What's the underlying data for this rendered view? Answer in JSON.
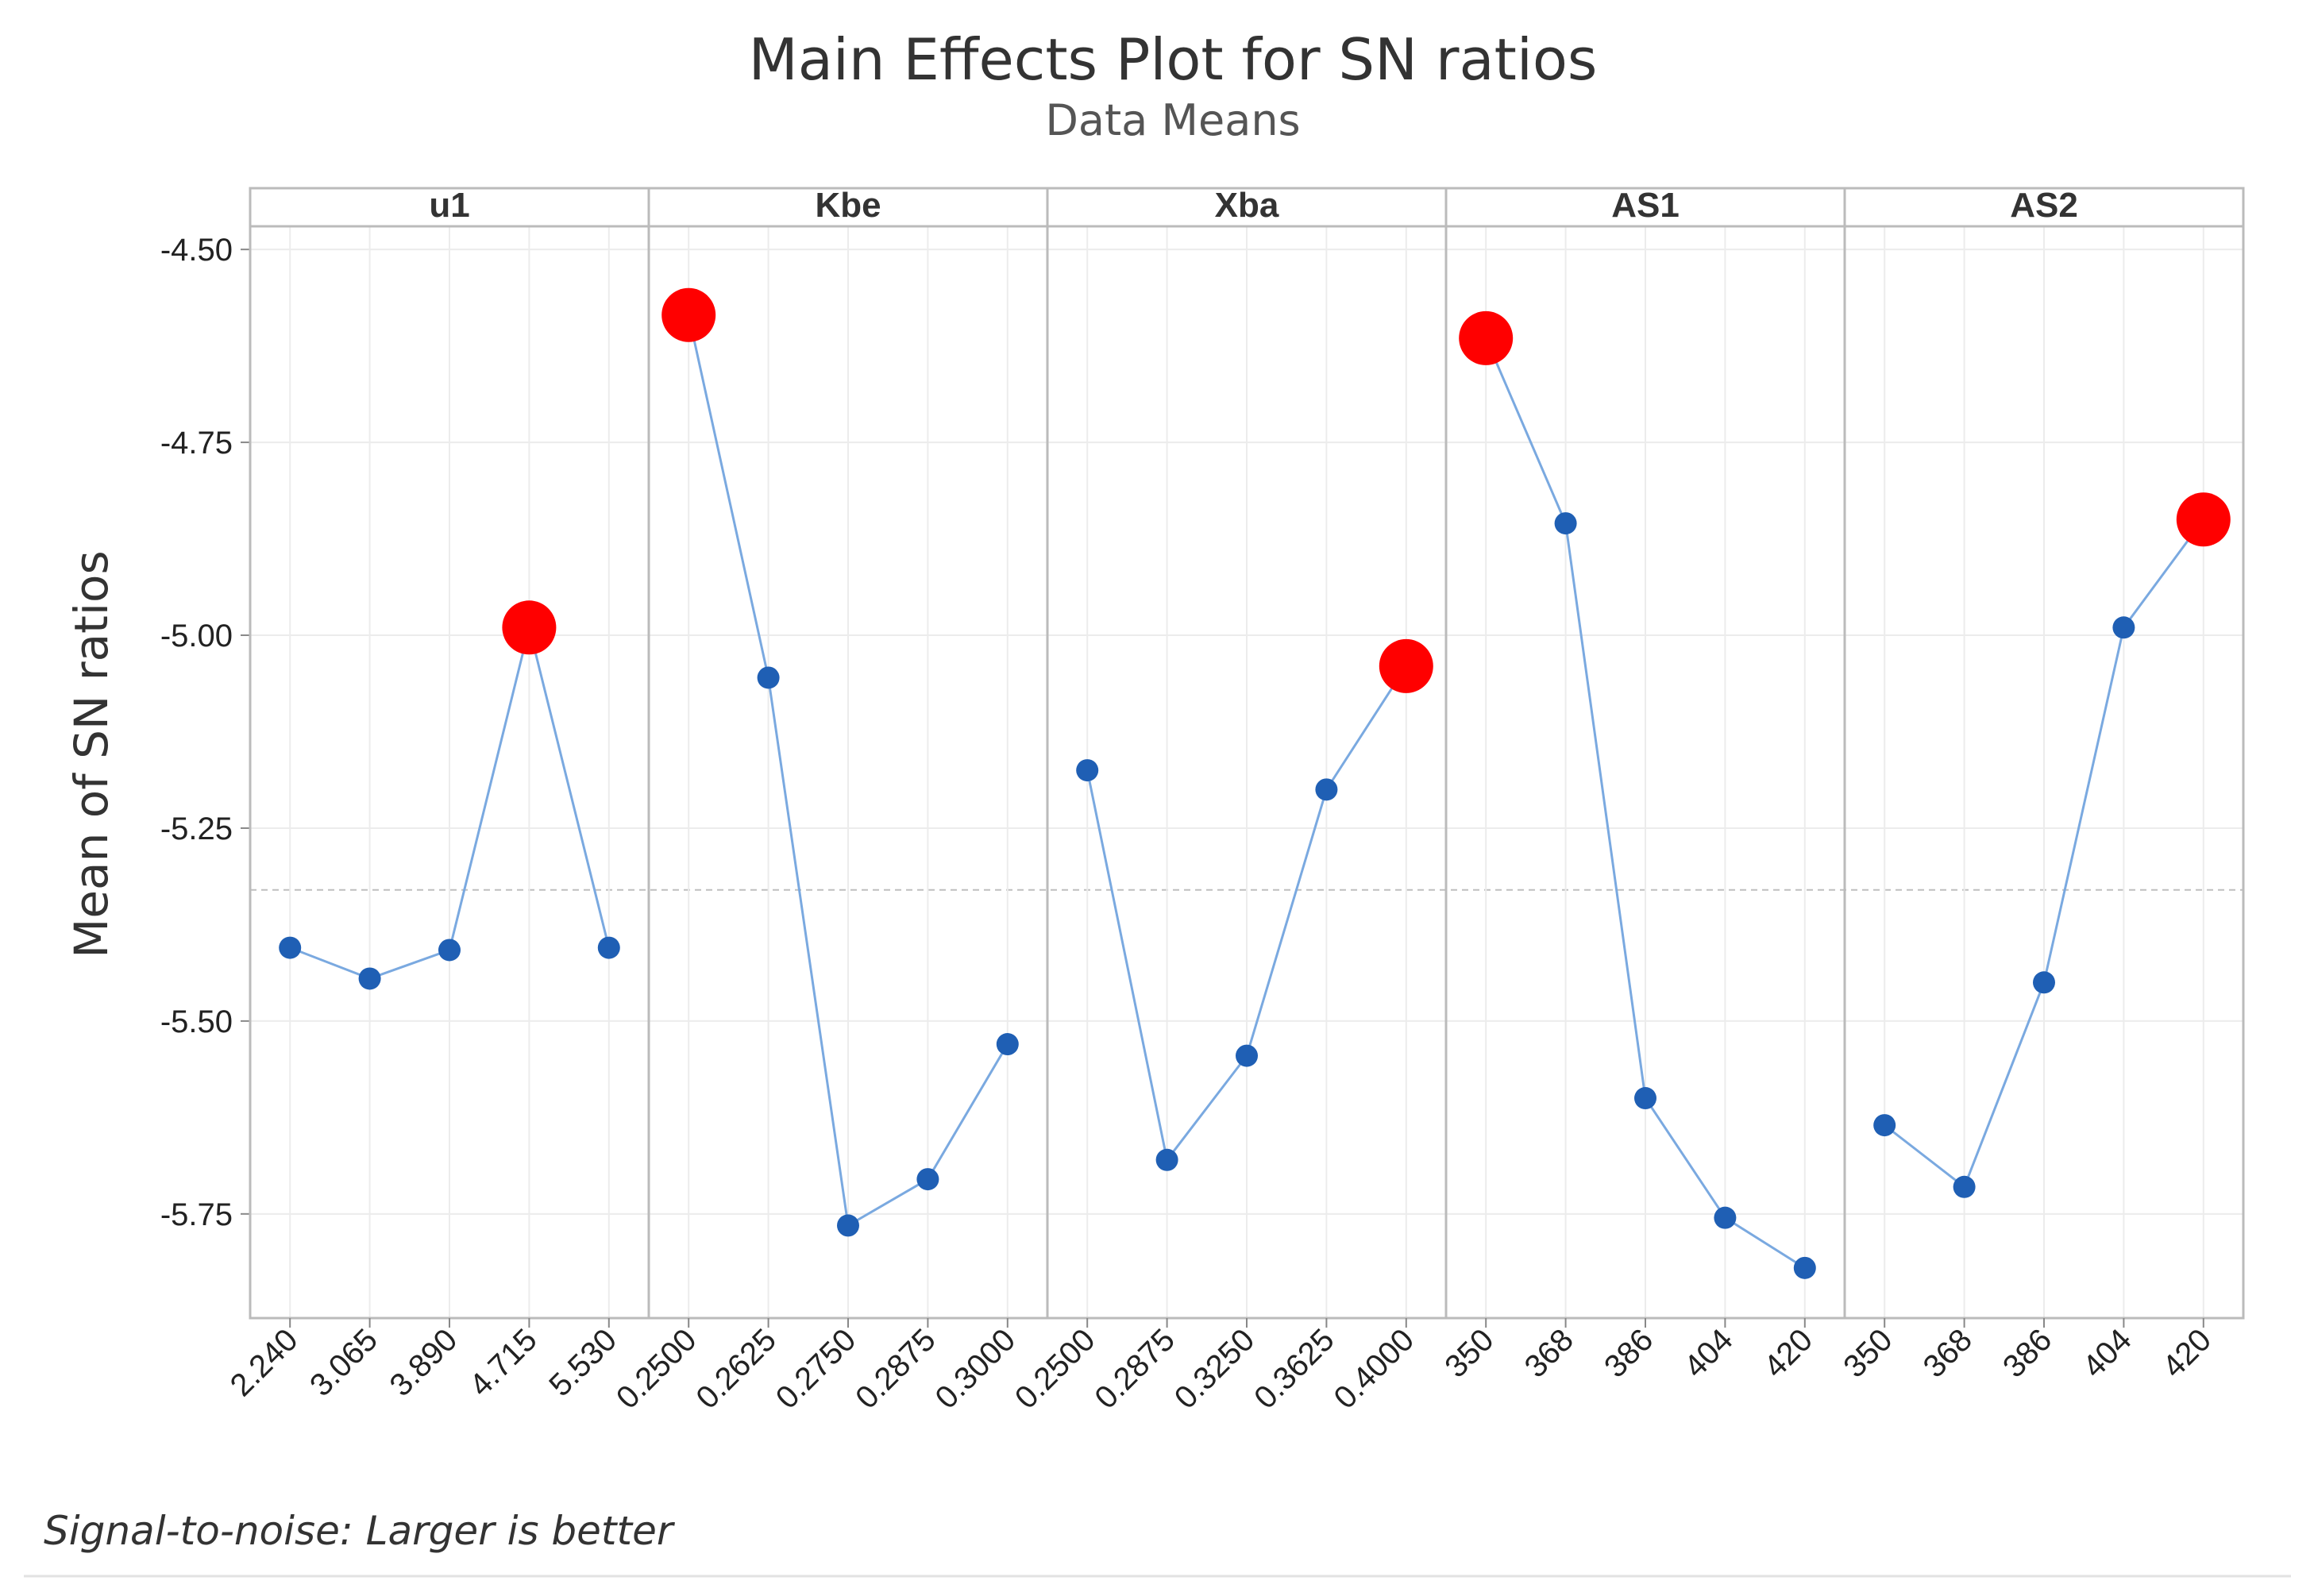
{
  "chart_data": {
    "type": "line",
    "title": "Main Effects Plot for SN ratios",
    "subtitle": "Data Means",
    "ylabel": "Mean of SN ratios",
    "footnote": "Signal-to-noise: Larger is better",
    "ylim": [
      -5.885,
      -4.47
    ],
    "yticks": [
      "-4.50",
      "-4.75",
      "-5.00",
      "-5.25",
      "-5.50",
      "-5.75"
    ],
    "ytick_values": [
      -4.5,
      -4.75,
      -5.0,
      -5.25,
      -5.5,
      -5.75
    ],
    "reference_line": -5.33,
    "grid": true,
    "colors": {
      "point": "#1f5fb4",
      "line": "#7aa9e0",
      "highlight": "#ff0000",
      "frame": "#bbbbbb",
      "grid": "#ececec",
      "reference": "#bfbfbf"
    },
    "panels": [
      {
        "name": "u1",
        "categories": [
          "2.240",
          "3.065",
          "3.890",
          "4.715",
          "5.530"
        ],
        "values": [
          -5.405,
          -5.445,
          -5.408,
          -4.99,
          -5.405
        ],
        "best_index": 3
      },
      {
        "name": "Kbe",
        "categories": [
          "0.2500",
          "0.2625",
          "0.2750",
          "0.2875",
          "0.3000"
        ],
        "values": [
          -4.585,
          -5.055,
          -5.765,
          -5.705,
          -5.53
        ],
        "best_index": 0
      },
      {
        "name": "Xba",
        "categories": [
          "0.2500",
          "0.2875",
          "0.3250",
          "0.3625",
          "0.4000"
        ],
        "values": [
          -5.175,
          -5.68,
          -5.545,
          -5.2,
          -5.04
        ],
        "best_index": 4
      },
      {
        "name": "AS1",
        "categories": [
          "350",
          "368",
          "386",
          "404",
          "420"
        ],
        "values": [
          -4.615,
          -4.855,
          -5.6,
          -5.755,
          -5.82
        ],
        "best_index": 0
      },
      {
        "name": "AS2",
        "categories": [
          "350",
          "368",
          "386",
          "404",
          "420"
        ],
        "values": [
          -5.635,
          -5.715,
          -5.45,
          -4.99,
          -4.85
        ],
        "best_index": 4
      }
    ]
  }
}
